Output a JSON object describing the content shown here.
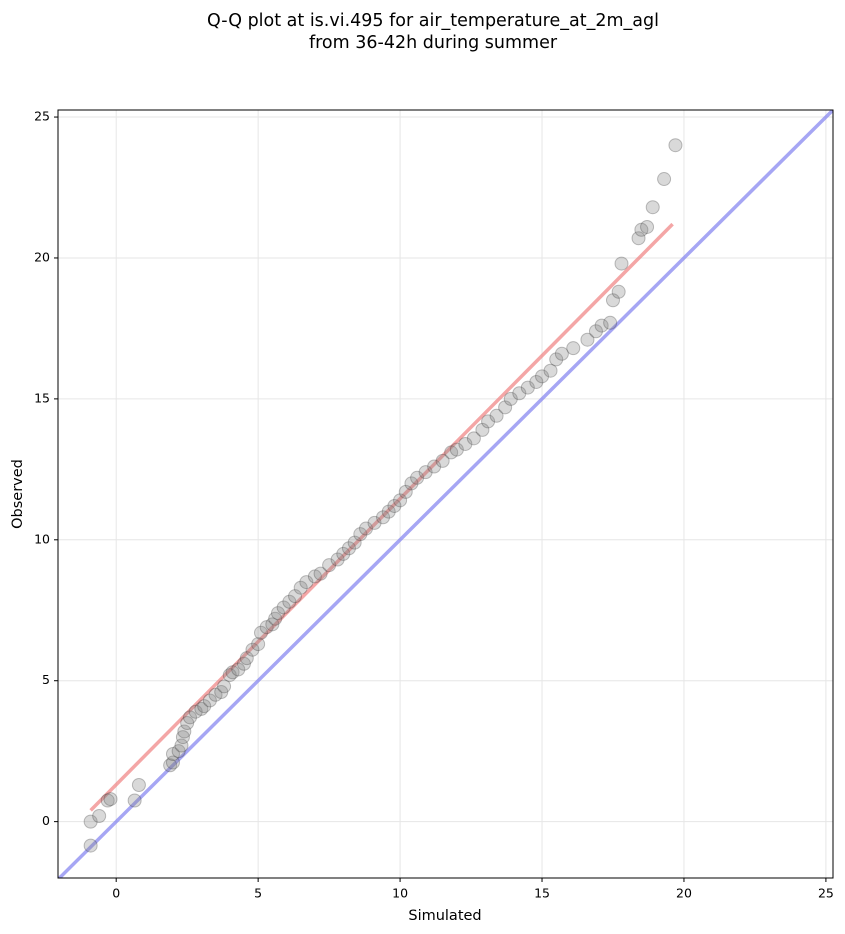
{
  "chart_data": {
    "type": "scatter",
    "title": [
      "Q-Q plot at is.vi.495 for air_temperature_at_2m_agl",
      "from 36-42h during summer"
    ],
    "xlabel": "Simulated",
    "ylabel": "Observed",
    "xlim": [
      -2.05,
      25.25
    ],
    "ylim": [
      -2.0,
      25.25
    ],
    "xticks": [
      0,
      5,
      10,
      15,
      20,
      25
    ],
    "yticks": [
      0,
      5,
      10,
      15,
      20,
      25
    ],
    "grid": true,
    "color": "#808080",
    "x": [
      -0.9,
      -0.9,
      -0.6,
      -0.3,
      -0.2,
      0.65,
      0.8,
      1.9,
      2.0,
      2.0,
      2.2,
      2.3,
      2.35,
      2.4,
      2.5,
      2.6,
      2.8,
      3.0,
      3.1,
      3.3,
      3.5,
      3.7,
      3.8,
      4.0,
      4.1,
      4.3,
      4.5,
      4.6,
      4.8,
      5.0,
      5.1,
      5.3,
      5.5,
      5.6,
      5.7,
      5.9,
      6.1,
      6.3,
      6.5,
      6.7,
      7.0,
      7.2,
      7.5,
      7.8,
      8.0,
      8.2,
      8.4,
      8.6,
      8.8,
      9.1,
      9.4,
      9.6,
      9.8,
      10.0,
      10.2,
      10.4,
      10.6,
      10.9,
      11.2,
      11.5,
      11.8,
      12.0,
      12.3,
      12.6,
      12.9,
      13.1,
      13.4,
      13.7,
      13.9,
      14.2,
      14.5,
      14.8,
      15.0,
      15.3,
      15.5,
      15.7,
      16.1,
      16.6,
      16.9,
      17.1,
      17.4,
      17.5,
      17.7,
      17.8,
      18.4,
      18.5,
      18.7,
      18.9,
      19.3,
      19.7
    ],
    "values": [
      -0.85,
      0.0,
      0.2,
      0.75,
      0.8,
      0.75,
      1.3,
      2.0,
      2.1,
      2.4,
      2.5,
      2.7,
      3.0,
      3.2,
      3.5,
      3.7,
      3.9,
      4.0,
      4.1,
      4.3,
      4.5,
      4.6,
      4.8,
      5.2,
      5.3,
      5.4,
      5.6,
      5.8,
      6.1,
      6.3,
      6.7,
      6.9,
      7.0,
      7.2,
      7.4,
      7.6,
      7.8,
      8.0,
      8.3,
      8.5,
      8.7,
      8.8,
      9.1,
      9.3,
      9.5,
      9.7,
      9.9,
      10.2,
      10.4,
      10.6,
      10.8,
      11.0,
      11.2,
      11.4,
      11.7,
      12.0,
      12.2,
      12.4,
      12.6,
      12.8,
      13.1,
      13.2,
      13.4,
      13.6,
      13.9,
      14.2,
      14.4,
      14.7,
      15.0,
      15.2,
      15.4,
      15.6,
      15.8,
      16.0,
      16.4,
      16.6,
      16.8,
      17.1,
      17.4,
      17.6,
      17.7,
      18.5,
      18.8,
      19.8,
      20.7,
      21.0,
      21.1,
      21.8,
      22.8,
      24.0
    ],
    "lines": [
      {
        "color": "#f08080",
        "x": [
          -0.9,
          19.6
        ],
        "values": [
          0.4,
          21.2
        ]
      },
      {
        "color": "#8080f0",
        "x": [
          -2.05,
          25.25
        ],
        "values": [
          -2.05,
          25.25
        ]
      }
    ]
  }
}
